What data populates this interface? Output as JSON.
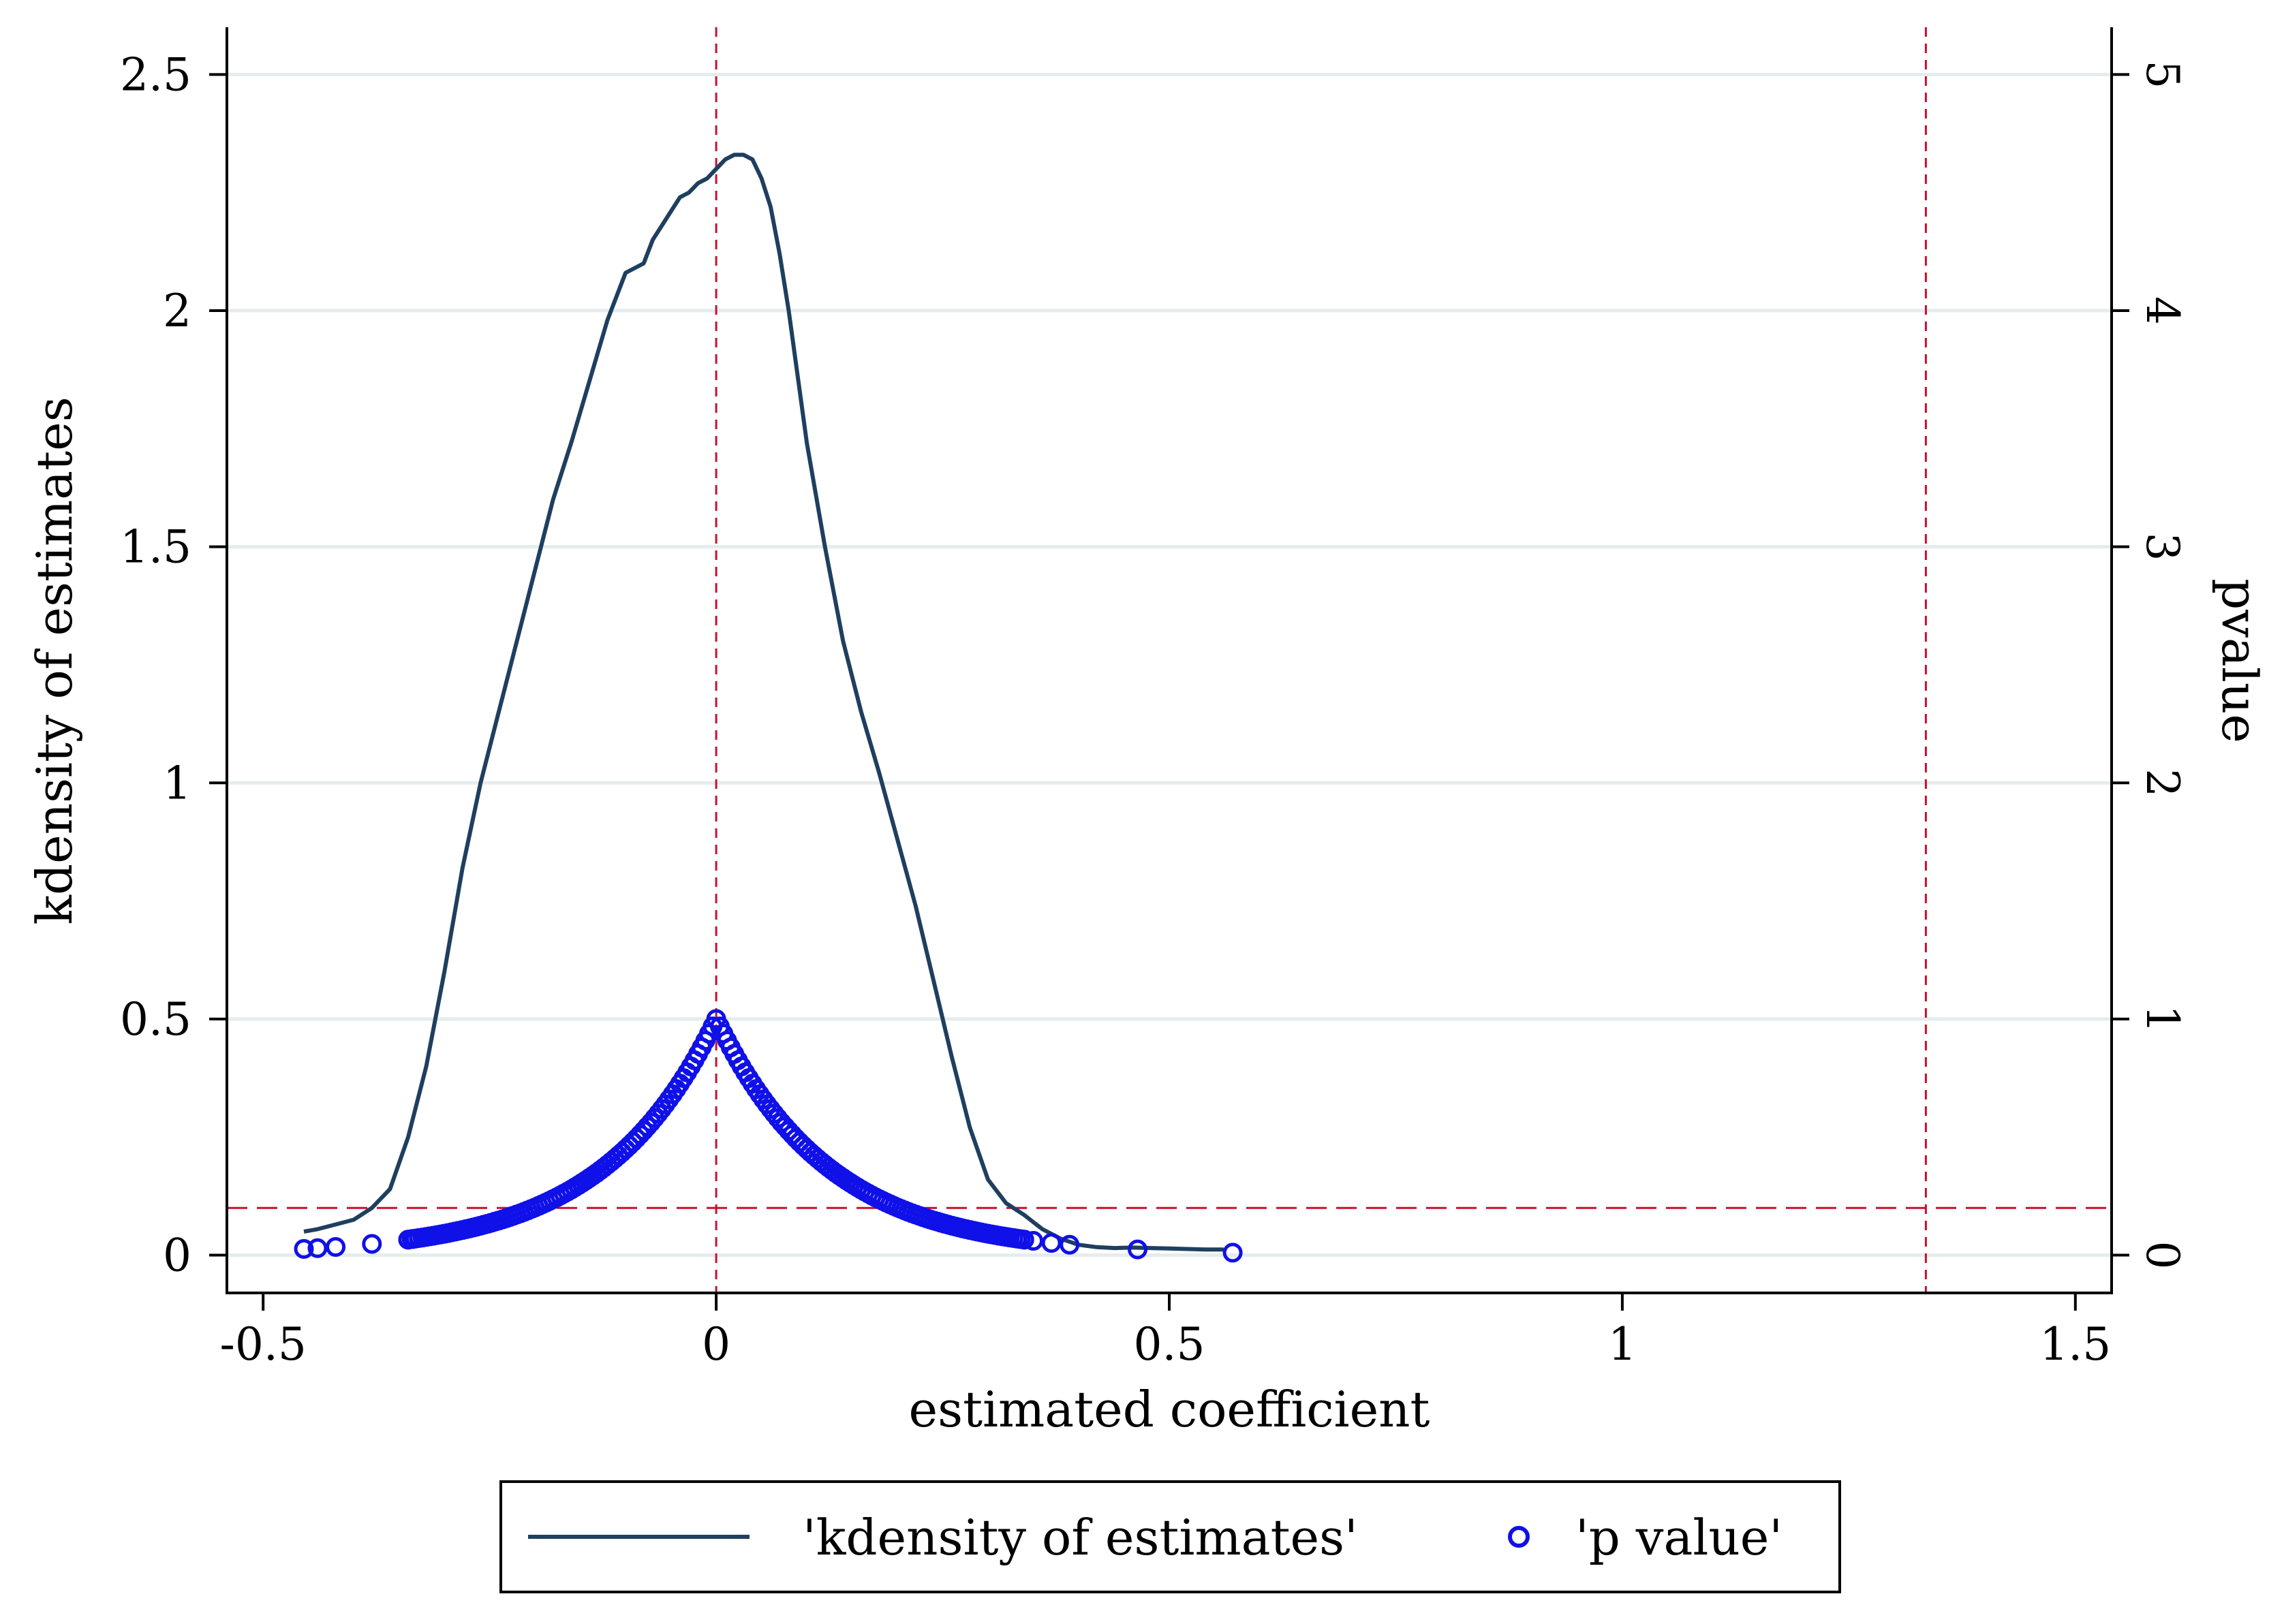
{
  "chart_data": {
    "type": "line+scatter",
    "title": "",
    "xlabel": "estimated coefficient",
    "ylabel_left": "kdensity of estimates",
    "ylabel_right": "pvalue",
    "xlim": [
      -0.54,
      1.54
    ],
    "ylim_left": [
      -0.08,
      2.6
    ],
    "ylim_right": [
      -0.16,
      5.2
    ],
    "x_ticks": [
      -0.5,
      0,
      0.5,
      1,
      1.5
    ],
    "x_tick_labels": [
      "-0.5",
      "0",
      "0.5",
      "1",
      "1.5"
    ],
    "y_left_ticks": [
      0,
      0.5,
      1,
      1.5,
      2,
      2.5
    ],
    "y_left_tick_labels": [
      "0",
      "0.5",
      "1",
      "1.5",
      "2",
      "2.5"
    ],
    "y_right_ticks": [
      0,
      1,
      2,
      3,
      4,
      5
    ],
    "y_right_tick_labels": [
      "0",
      "1",
      "2",
      "3",
      "4",
      "5"
    ],
    "grid": "horizontal",
    "reference_lines": {
      "vertical_x": [
        0,
        1.335
      ],
      "horizontal_y_left": [
        0.1
      ],
      "color": "#c8102e"
    },
    "series": [
      {
        "name": "'kdensity of estimates'",
        "type": "line",
        "axis": "left",
        "color": "#1f3f5f",
        "x": [
          -0.455,
          -0.44,
          -0.42,
          -0.4,
          -0.38,
          -0.36,
          -0.34,
          -0.32,
          -0.3,
          -0.28,
          -0.26,
          -0.24,
          -0.22,
          -0.2,
          -0.18,
          -0.16,
          -0.14,
          -0.12,
          -0.1,
          -0.08,
          -0.07,
          -0.06,
          -0.05,
          -0.04,
          -0.03,
          -0.02,
          -0.01,
          0,
          0.01,
          0.02,
          0.03,
          0.04,
          0.05,
          0.06,
          0.07,
          0.08,
          0.09,
          0.1,
          0.12,
          0.14,
          0.16,
          0.18,
          0.2,
          0.22,
          0.24,
          0.26,
          0.28,
          0.3,
          0.32,
          0.34,
          0.36,
          0.38,
          0.4,
          0.42,
          0.44,
          0.46,
          0.48,
          0.5,
          0.52,
          0.54,
          0.56
        ],
        "values": [
          0.05,
          0.055,
          0.065,
          0.075,
          0.1,
          0.14,
          0.25,
          0.4,
          0.6,
          0.82,
          1.0,
          1.15,
          1.3,
          1.45,
          1.6,
          1.72,
          1.85,
          1.98,
          2.08,
          2.1,
          2.15,
          2.18,
          2.21,
          2.24,
          2.25,
          2.27,
          2.28,
          2.3,
          2.32,
          2.33,
          2.33,
          2.32,
          2.28,
          2.22,
          2.12,
          2.0,
          1.86,
          1.72,
          1.5,
          1.3,
          1.15,
          1.02,
          0.88,
          0.74,
          0.58,
          0.42,
          0.27,
          0.16,
          0.11,
          0.085,
          0.055,
          0.035,
          0.022,
          0.017,
          0.015,
          0.016,
          0.015,
          0.014,
          0.013,
          0.012,
          0.012
        ]
      },
      {
        "name": "'p value'",
        "type": "scatter",
        "axis": "right",
        "color": "#1010e8",
        "formula": "p = exp(-|x|/0.125)",
        "dense_x_range": [
          -0.34,
          0.34
        ],
        "dense_step": 0.004,
        "outliers_x": [
          -0.455,
          -0.44,
          -0.42,
          -0.38,
          -0.34,
          -0.335,
          0.34,
          0.35,
          0.37,
          0.39,
          0.465,
          0.57
        ]
      }
    ],
    "legend": {
      "placement": "bottom-center",
      "items": [
        "'kdensity of estimates'",
        "'p value'"
      ]
    }
  }
}
